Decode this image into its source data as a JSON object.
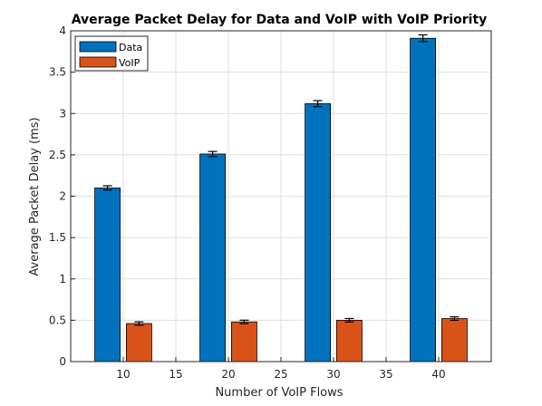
{
  "chart_data": {
    "type": "bar",
    "title": "Average Packet Delay for Data and VoIP with VoIP Priority",
    "xlabel": "Number of VoIP Flows",
    "ylabel": "Average Packet Delay (ms)",
    "xlim": [
      5,
      45
    ],
    "ylim": [
      0,
      4
    ],
    "xticks": [
      10,
      15,
      20,
      25,
      30,
      35,
      40
    ],
    "yticks": [
      0,
      0.5,
      1,
      1.5,
      2,
      2.5,
      3,
      3.5,
      4
    ],
    "ytick_labels": [
      "0",
      "0.5",
      "1",
      "1.5",
      "2",
      "2.5",
      "3",
      "3.5",
      "4"
    ],
    "grid": true,
    "legend_position": "top-left",
    "series": [
      {
        "name": "Data",
        "color": "#0072BD",
        "x": [
          8.5,
          18.5,
          28.5,
          38.5
        ],
        "values": [
          2.1,
          2.51,
          3.12,
          3.91
        ],
        "error": [
          0.015,
          0.02,
          0.025,
          0.03
        ]
      },
      {
        "name": "VoIP",
        "color": "#D95319",
        "x": [
          11.5,
          21.5,
          31.5,
          41.5
        ],
        "values": [
          0.46,
          0.48,
          0.5,
          0.52
        ],
        "error": [
          0.01,
          0.01,
          0.01,
          0.01
        ]
      }
    ]
  }
}
